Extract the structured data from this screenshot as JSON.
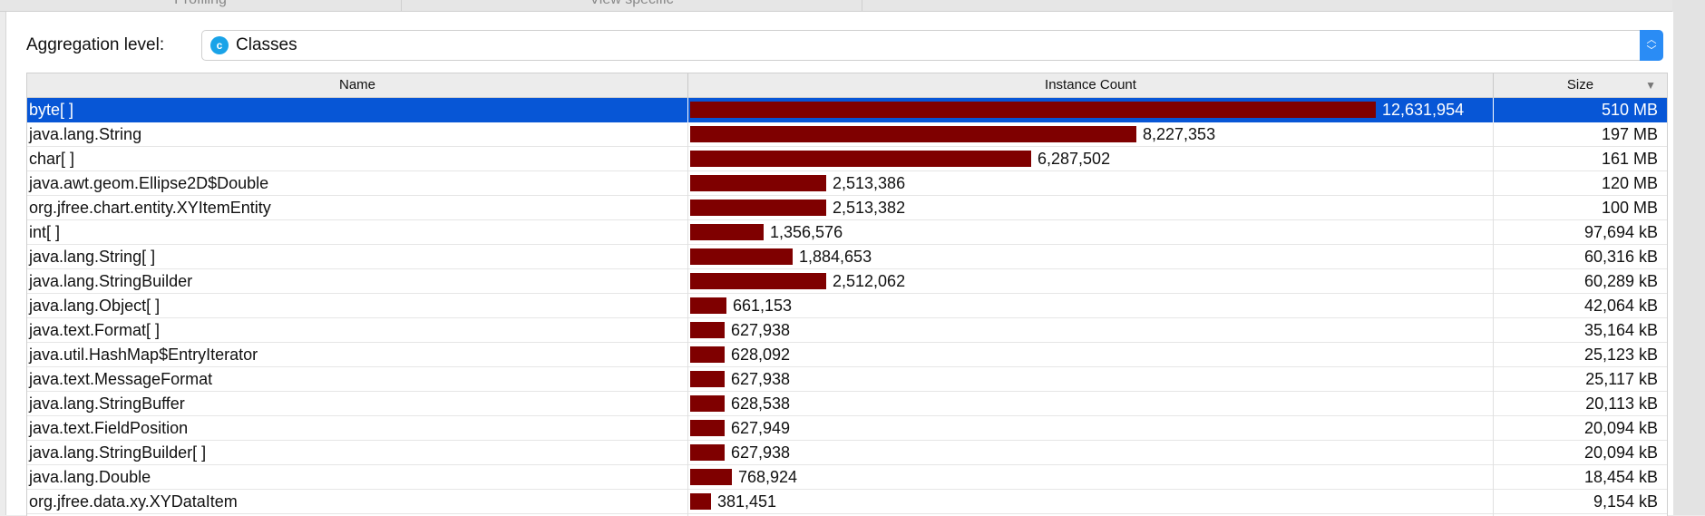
{
  "tabs": [
    {
      "label": "Profiling"
    },
    {
      "label": "View specific"
    }
  ],
  "aggregation": {
    "label": "Aggregation level:",
    "value": "Classes",
    "icon": "class-c-icon",
    "icon_letter": "c"
  },
  "table": {
    "columns": [
      {
        "label": "Name"
      },
      {
        "label": "Instance Count"
      },
      {
        "label": "Size",
        "sort": "descending"
      }
    ],
    "bar_color": "#7f0000",
    "selected_color": "#0756d6",
    "rows": [
      {
        "name": "byte[ ]",
        "count": 12631954,
        "count_label": "12,631,954",
        "size": "510 MB",
        "selected": true
      },
      {
        "name": "java.lang.String",
        "count": 8227353,
        "count_label": "8,227,353",
        "size": "197 MB"
      },
      {
        "name": "char[ ]",
        "count": 6287502,
        "count_label": "6,287,502",
        "size": "161 MB"
      },
      {
        "name": "java.awt.geom.Ellipse2D$Double",
        "count": 2513386,
        "count_label": "2,513,386",
        "size": "120 MB"
      },
      {
        "name": "org.jfree.chart.entity.XYItemEntity",
        "count": 2513382,
        "count_label": "2,513,382",
        "size": "100 MB"
      },
      {
        "name": "int[ ]",
        "count": 1356576,
        "count_label": "1,356,576",
        "size": "97,694 kB"
      },
      {
        "name": "java.lang.String[ ]",
        "count": 1884653,
        "count_label": "1,884,653",
        "size": "60,316 kB"
      },
      {
        "name": "java.lang.StringBuilder",
        "count": 2512062,
        "count_label": "2,512,062",
        "size": "60,289 kB"
      },
      {
        "name": "java.lang.Object[ ]",
        "count": 661153,
        "count_label": "661,153",
        "size": "42,064 kB"
      },
      {
        "name": "java.text.Format[ ]",
        "count": 627938,
        "count_label": "627,938",
        "size": "35,164 kB"
      },
      {
        "name": "java.util.HashMap$EntryIterator",
        "count": 628092,
        "count_label": "628,092",
        "size": "25,123 kB"
      },
      {
        "name": "java.text.MessageFormat",
        "count": 627938,
        "count_label": "627,938",
        "size": "25,117 kB"
      },
      {
        "name": "java.lang.StringBuffer",
        "count": 628538,
        "count_label": "628,538",
        "size": "20,113 kB"
      },
      {
        "name": "java.text.FieldPosition",
        "count": 627949,
        "count_label": "627,949",
        "size": "20,094 kB"
      },
      {
        "name": "java.lang.StringBuilder[ ]",
        "count": 627938,
        "count_label": "627,938",
        "size": "20,094 kB"
      },
      {
        "name": "java.lang.Double",
        "count": 768924,
        "count_label": "768,924",
        "size": "18,454 kB"
      },
      {
        "name": "org.jfree.data.xy.XYDataItem",
        "count": 381451,
        "count_label": "381,451",
        "size": "9,154 kB"
      }
    ]
  }
}
